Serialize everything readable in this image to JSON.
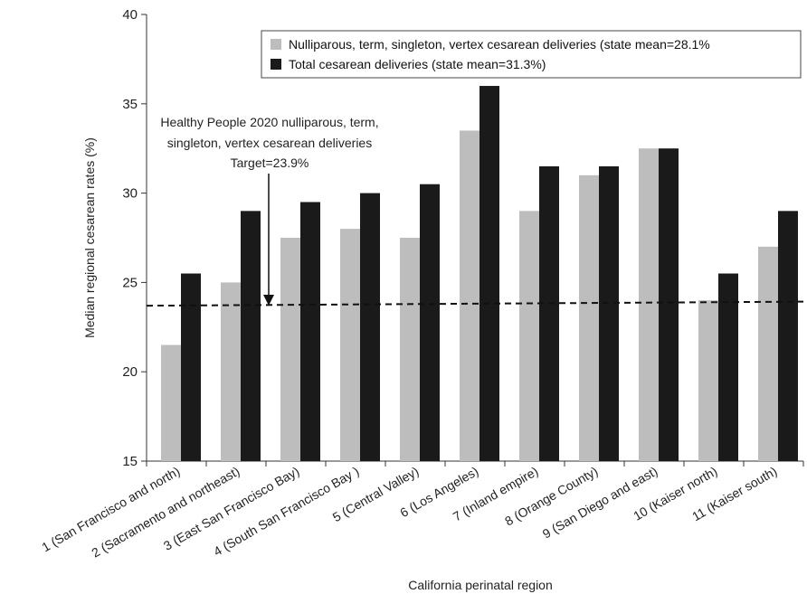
{
  "chart_data": {
    "type": "bar",
    "title": "",
    "xlabel": "California perinatal region",
    "ylabel": "Median regional cesarean rates (%)",
    "ylim": [
      15,
      40
    ],
    "yticks": [
      15,
      20,
      25,
      30,
      35,
      40
    ],
    "grid": false,
    "legend_position": "top-right",
    "categories": [
      "1 (San Francisco and north)",
      "2 (Sacramento and northeast)",
      "3 (East San Francisco Bay)",
      "4 (South San Francisco Bay )",
      "5 (Central Valley)",
      "6 (Los Angeles)",
      "7 (Inland empire)",
      "8 (Orange County)",
      "9 (San Diego and east)",
      "10 (Kaiser north)",
      "11 (Kaiser south)"
    ],
    "series": [
      {
        "name": "Nulliparous, term, singleton, vertex cesarean deliveries (state mean=28.1%",
        "color": "#bdbdbd",
        "values": [
          21.5,
          25.0,
          27.5,
          28.0,
          27.5,
          33.5,
          29.0,
          31.0,
          32.5,
          24.0,
          27.0
        ]
      },
      {
        "name": "Total cesarean deliveries (state mean=31.3%)",
        "color": "#1a1a1a",
        "values": [
          25.5,
          29.0,
          29.5,
          30.0,
          30.5,
          36.0,
          31.5,
          31.5,
          32.5,
          25.5,
          29.0
        ]
      }
    ],
    "reference_line": {
      "value": 23.9,
      "style": "dashed",
      "label_lines": [
        "Healthy People 2020 nulliparous, term,",
        "singleton, vertex cesarean deliveries",
        "Target=23.9%"
      ]
    }
  }
}
